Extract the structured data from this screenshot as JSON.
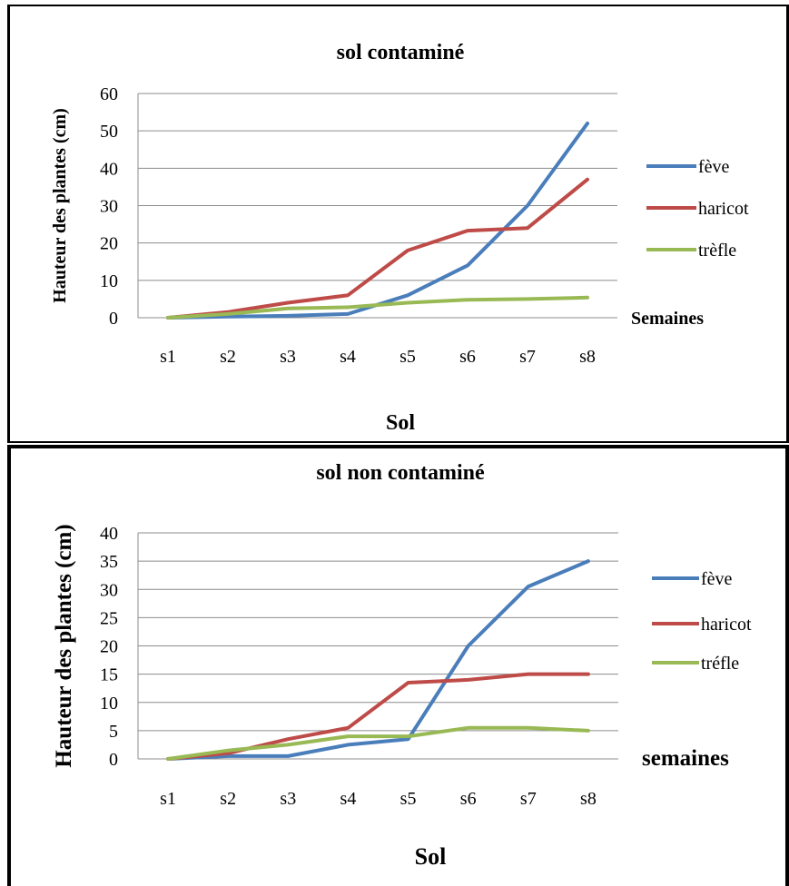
{
  "chart_data": [
    {
      "type": "line",
      "title": "sol contaminé",
      "ylabel": "Hauteur des plantes  (cm)",
      "xlabel": "Sol",
      "x_side_label": "Semaines",
      "categories": [
        "s1",
        "s2",
        "s3",
        "s4",
        "s5",
        "s6",
        "s7",
        "s8"
      ],
      "ylim": [
        0,
        60
      ],
      "ytick_step": 10,
      "yticks": [
        "0",
        "10",
        "20",
        "30",
        "40",
        "50",
        "60"
      ],
      "grid": true,
      "legend_position": "right",
      "series": [
        {
          "name": "fève",
          "color": "#4a7ebb",
          "values": [
            0,
            0.3,
            0.5,
            1,
            6,
            14,
            30,
            52
          ]
        },
        {
          "name": "haricot",
          "color": "#be4b48",
          "values": [
            0,
            1.5,
            4,
            6,
            18,
            23.3,
            24,
            37
          ]
        },
        {
          "name": "trèfle",
          "color": "#98b954",
          "values": [
            0,
            1,
            2.5,
            2.8,
            4,
            4.8,
            5,
            5.4
          ]
        }
      ]
    },
    {
      "type": "line",
      "title": "sol non contaminé",
      "ylabel": "Hauteur des plantes (cm)",
      "xlabel": "Sol",
      "x_side_label": "semaines",
      "categories": [
        "s1",
        "s2",
        "s3",
        "s4",
        "s5",
        "s6",
        "s7",
        "s8"
      ],
      "ylim": [
        0,
        40
      ],
      "ytick_step": 5,
      "yticks": [
        "0",
        "5",
        "10",
        "15",
        "20",
        "25",
        "30",
        "35",
        "40"
      ],
      "grid": true,
      "legend_position": "right",
      "series": [
        {
          "name": "fève",
          "color": "#4a7ebb",
          "values": [
            0,
            0.5,
            0.5,
            2.5,
            3.5,
            20,
            30.5,
            35
          ]
        },
        {
          "name": "haricot",
          "color": "#be4b48",
          "values": [
            0,
            1,
            3.5,
            5.5,
            13.5,
            14,
            15,
            15
          ]
        },
        {
          "name": "tréfle",
          "color": "#98b954",
          "values": [
            0,
            1.5,
            2.5,
            4,
            4,
            5.5,
            5.5,
            5
          ]
        }
      ]
    }
  ]
}
